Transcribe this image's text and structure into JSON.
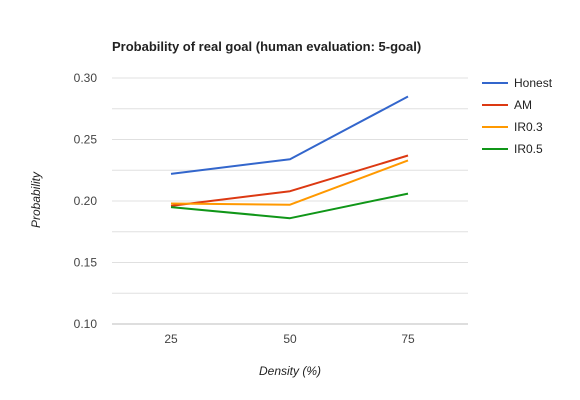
{
  "chart_data": {
    "type": "line",
    "title": "Probability of real goal (human evaluation: 5-goal)",
    "xlabel": "Density (%)",
    "ylabel": "Probability",
    "x": [
      25,
      50,
      75
    ],
    "x_tick_labels": [
      "25",
      "50",
      "75"
    ],
    "ylim": [
      0.1,
      0.3
    ],
    "y_ticks": [
      0.1,
      0.15,
      0.2,
      0.25,
      0.3
    ],
    "y_tick_labels": [
      "0.10",
      "0.15",
      "0.20",
      "0.25",
      "0.30"
    ],
    "grid": true,
    "legend_position": "right",
    "series": [
      {
        "name": "Honest",
        "color": "#3366cc",
        "values": [
          0.222,
          0.234,
          0.285
        ]
      },
      {
        "name": "AM",
        "color": "#dc3912",
        "values": [
          0.196,
          0.208,
          0.237
        ]
      },
      {
        "name": "IR0.3",
        "color": "#ff9900",
        "values": [
          0.198,
          0.197,
          0.233
        ]
      },
      {
        "name": "IR0.5",
        "color": "#109618",
        "values": [
          0.195,
          0.186,
          0.206
        ]
      }
    ]
  }
}
